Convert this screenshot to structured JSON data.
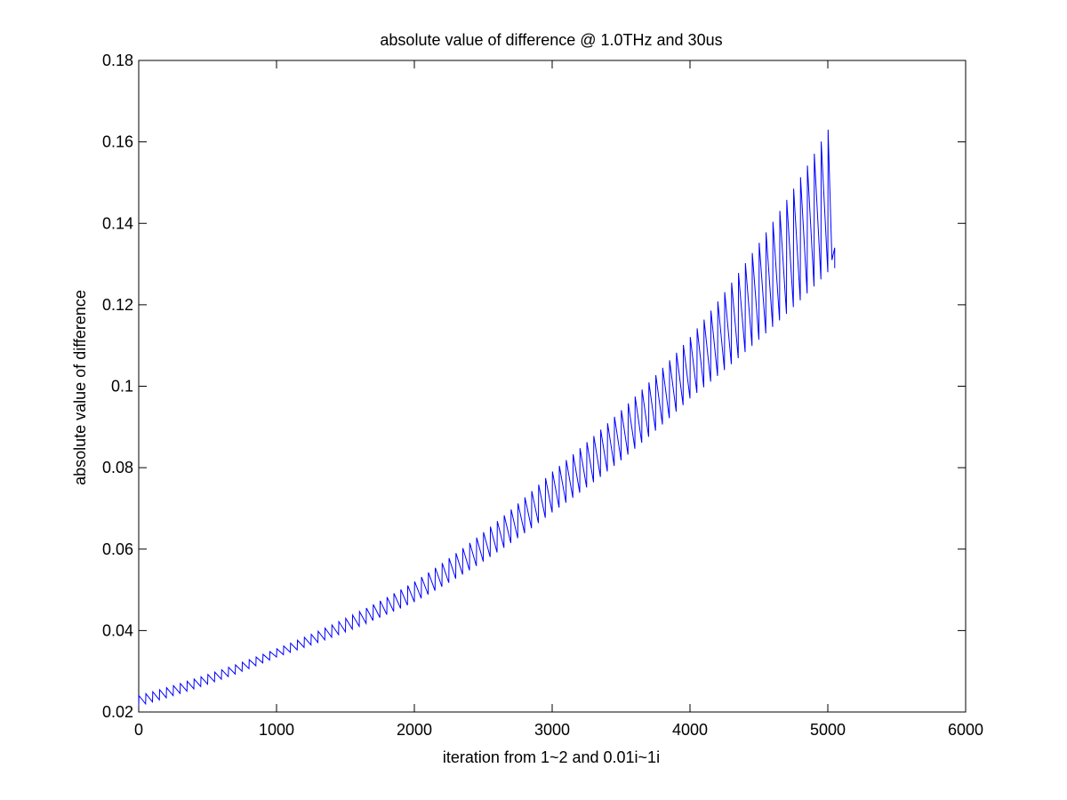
{
  "chart_data": {
    "type": "line",
    "title": "absolute value of difference @ 1.0THz and 30us",
    "xlabel": "iteration from 1~2 and 0.01i~1i",
    "ylabel": "absolute value of difference",
    "xlim": [
      0,
      6000
    ],
    "ylim": [
      0.02,
      0.18
    ],
    "xticks": [
      "0",
      "1000",
      "2000",
      "3000",
      "4000",
      "5000",
      "6000"
    ],
    "yticks": [
      "0.02",
      "0.04",
      "0.06",
      "0.08",
      "0.1",
      "0.12",
      "0.14",
      "0.16",
      "0.18"
    ],
    "grid": false,
    "legend": "none",
    "color": "#0000ff",
    "series": [
      {
        "description_of_shape": "sawtooth oscillation with period ~50 iterations around an exponentially growing trend",
        "x": [
          0,
          1000,
          2000,
          3000,
          4000,
          5000,
          5050
        ],
        "y_upper": [
          0.024,
          0.0355,
          0.052,
          0.079,
          0.112,
          0.163,
          0.134
        ],
        "y_lower": [
          0.0215,
          0.0335,
          0.047,
          0.069,
          0.097,
          0.128,
          0.129
        ],
        "period": 50,
        "x_end": 5050
      }
    ]
  },
  "colors": {
    "line": "#0000ff",
    "axes": "#000000",
    "background": "#ffffff"
  }
}
